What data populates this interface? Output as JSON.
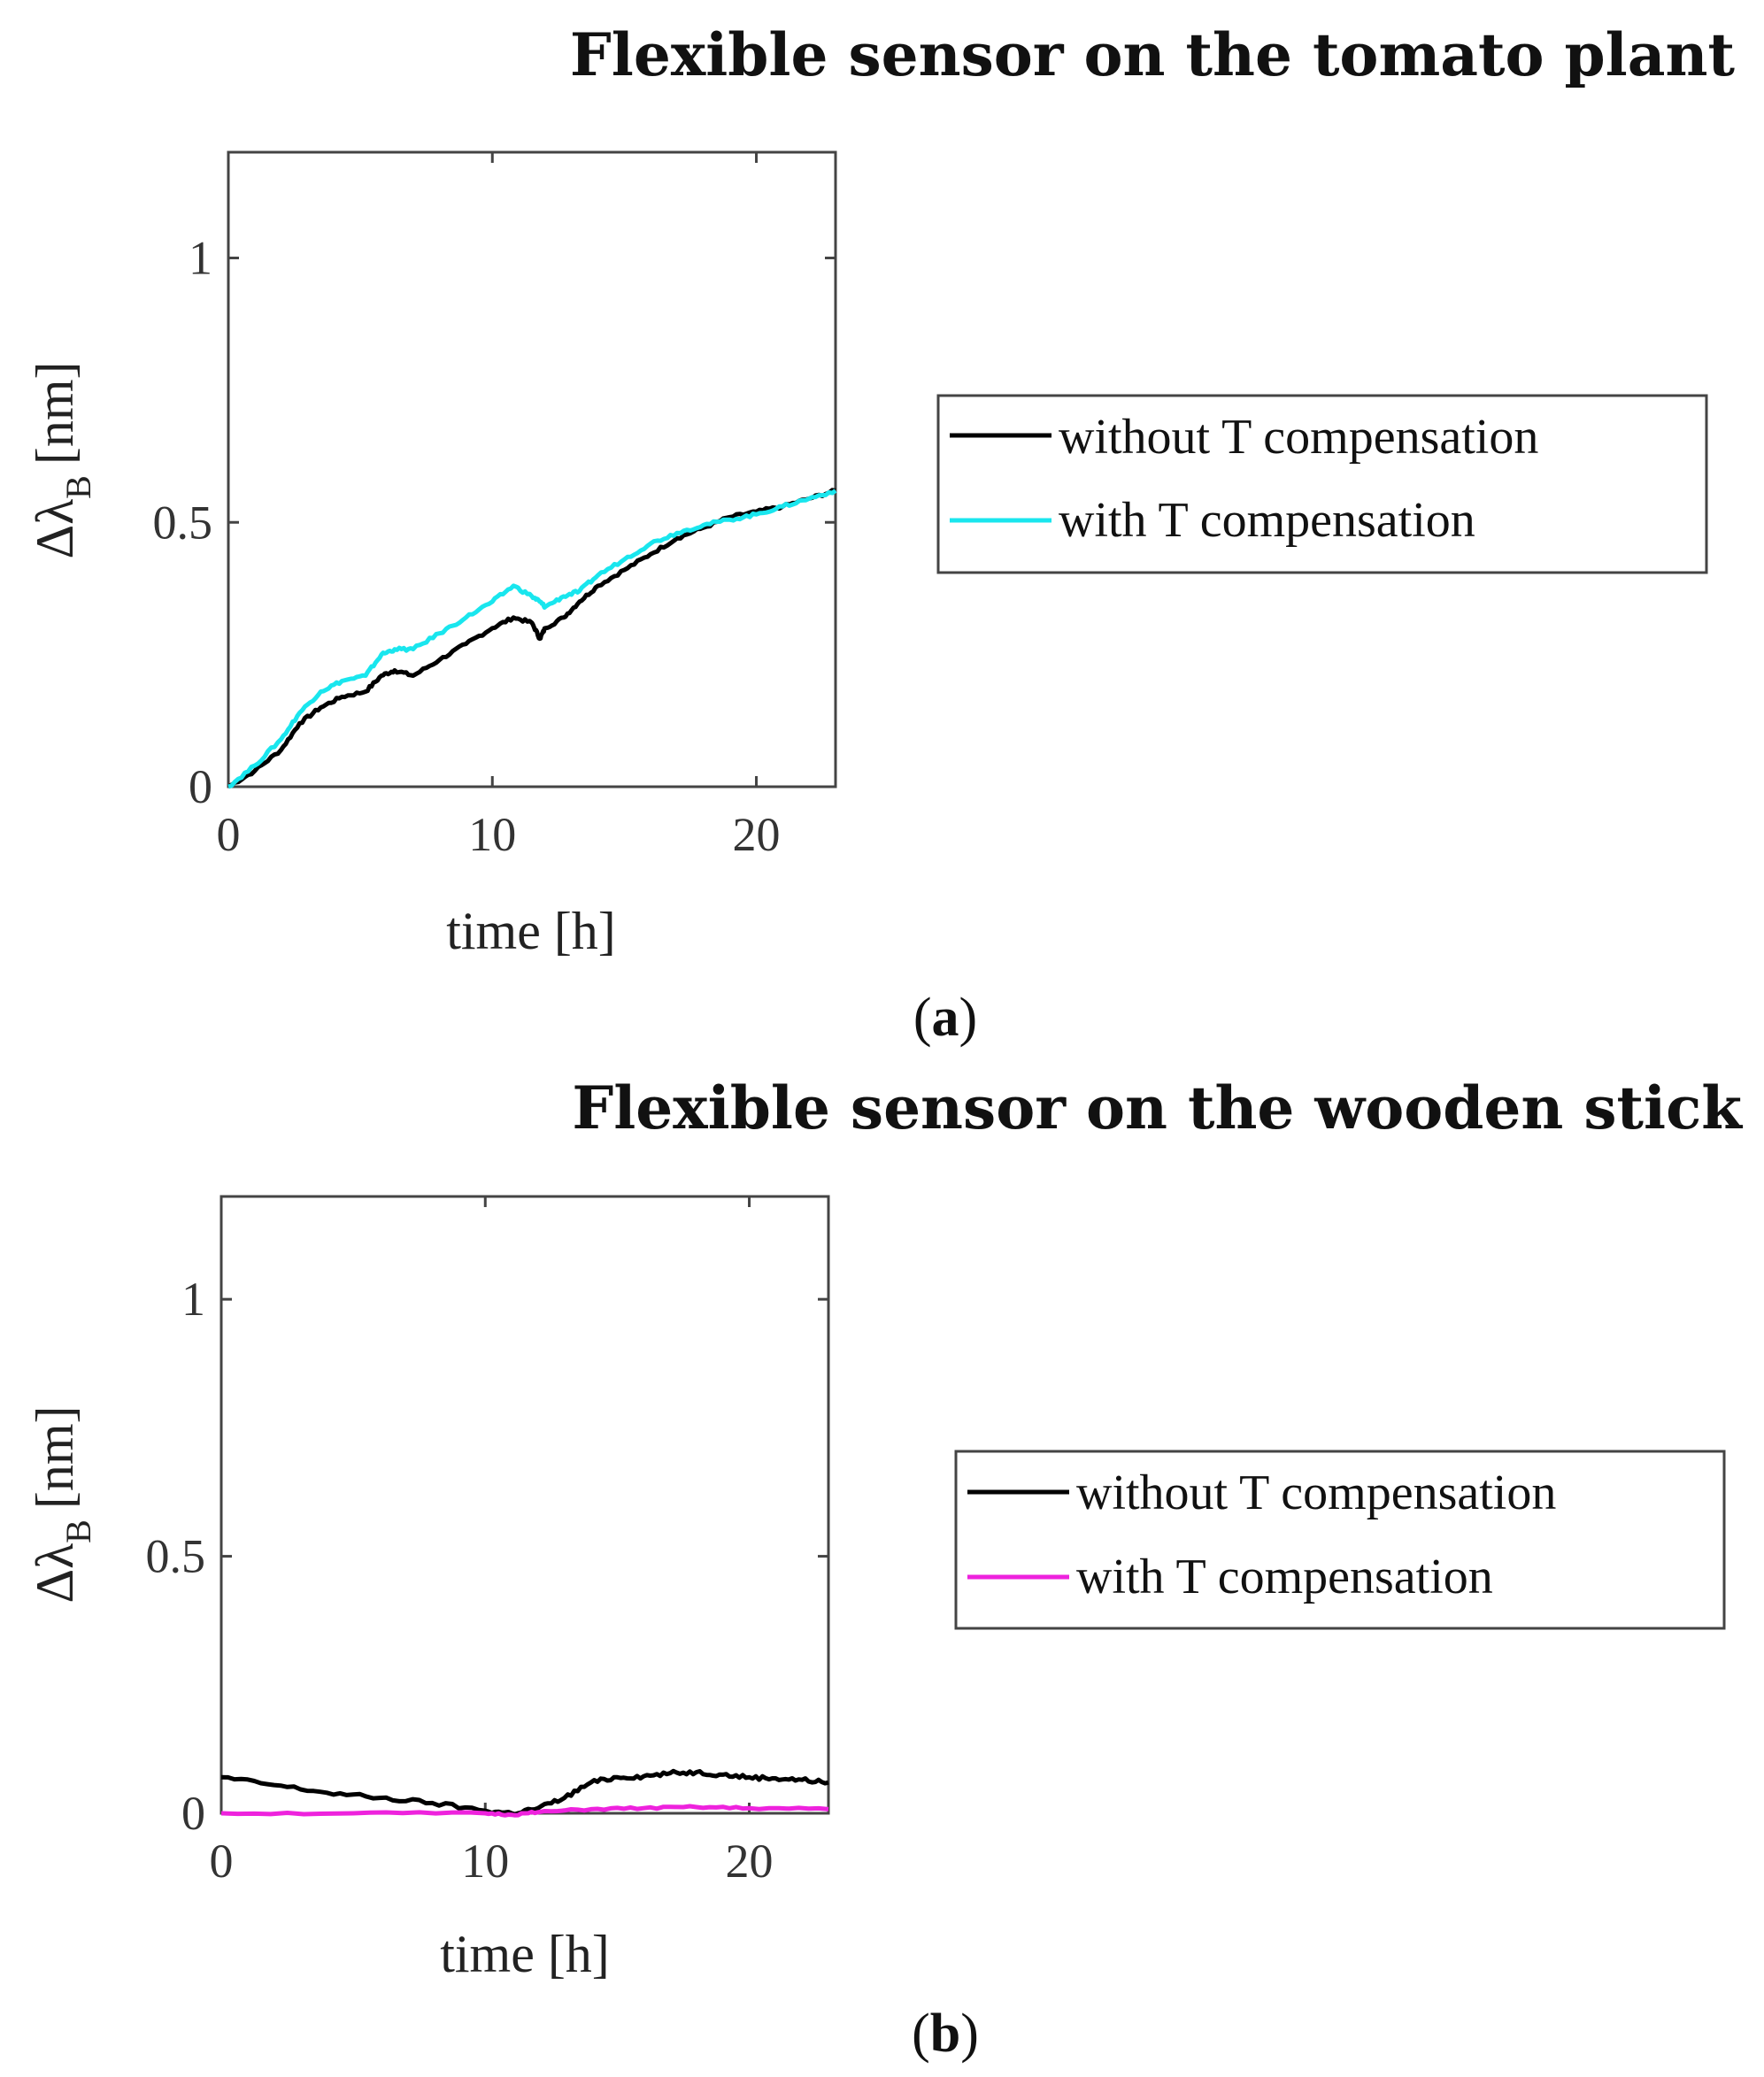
{
  "panels": [
    {
      "label_open": "(",
      "label_letter": "a",
      "label_close": ")"
    },
    {
      "label_open": "(",
      "label_letter": "b",
      "label_close": ")"
    }
  ],
  "chart_data": [
    {
      "type": "line",
      "title": "Flexible sensor on the tomato plant",
      "xlabel": "time [h]",
      "ylabel_main": "Δλ",
      "ylabel_sub": "B",
      "ylabel_unit": "[nm]",
      "xlim": [
        0,
        23
      ],
      "ylim": [
        0,
        1.2
      ],
      "xticks": [
        0,
        10,
        20
      ],
      "yticks": [
        0,
        0.5,
        1
      ],
      "ytick_labels": [
        "0",
        "0.5",
        "1"
      ],
      "legend_position": "right",
      "series": [
        {
          "name": "without T compensation",
          "color": "#000000",
          "x": [
            0,
            1,
            2,
            2.7,
            3.5,
            4.3,
            5.2,
            5.8,
            6.3,
            7,
            8,
            9,
            10,
            10.8,
            11.5,
            11.8,
            12,
            12.7,
            13.3,
            14,
            15,
            16,
            17,
            18,
            19,
            20,
            21,
            22,
            23
          ],
          "y": [
            0,
            0.03,
            0.07,
            0.12,
            0.15,
            0.17,
            0.18,
            0.21,
            0.22,
            0.21,
            0.24,
            0.27,
            0.3,
            0.32,
            0.31,
            0.28,
            0.3,
            0.32,
            0.35,
            0.38,
            0.41,
            0.44,
            0.47,
            0.49,
            0.51,
            0.52,
            0.53,
            0.545,
            0.56
          ]
        },
        {
          "name": "with T compensation",
          "color": "#19e6ee",
          "x": [
            0,
            1,
            2,
            2.7,
            3.5,
            4.3,
            5.2,
            5.8,
            6.3,
            7,
            8,
            9,
            10,
            10.8,
            11.5,
            11.8,
            12,
            12.7,
            13.3,
            14,
            15,
            16,
            17,
            18,
            19,
            20,
            21,
            22,
            23
          ],
          "y": [
            0,
            0.04,
            0.09,
            0.14,
            0.18,
            0.2,
            0.21,
            0.25,
            0.26,
            0.26,
            0.29,
            0.32,
            0.35,
            0.38,
            0.36,
            0.35,
            0.34,
            0.36,
            0.37,
            0.4,
            0.43,
            0.46,
            0.48,
            0.495,
            0.505,
            0.515,
            0.53,
            0.545,
            0.56
          ]
        }
      ]
    },
    {
      "type": "line",
      "title": "Flexible sensor on the wooden stick",
      "xlabel": "time [h]",
      "ylabel_main": "Δλ",
      "ylabel_sub": "B",
      "ylabel_unit": "[nm]",
      "xlim": [
        0,
        23
      ],
      "ylim": [
        0,
        1.2
      ],
      "xticks": [
        0,
        10,
        20
      ],
      "yticks": [
        0,
        0.5,
        1
      ],
      "ytick_labels": [
        "0",
        "0.5",
        "1"
      ],
      "legend_position": "right",
      "series": [
        {
          "name": "without T compensation",
          "color": "#000000",
          "x": [
            0,
            2,
            4,
            6,
            8,
            10,
            11,
            12,
            13,
            14,
            15,
            16,
            17,
            18,
            19,
            20,
            21,
            22,
            23
          ],
          "y": [
            0.07,
            0.055,
            0.04,
            0.03,
            0.02,
            0.005,
            0.0,
            0.01,
            0.03,
            0.06,
            0.07,
            0.072,
            0.078,
            0.08,
            0.075,
            0.07,
            0.068,
            0.065,
            0.06
          ],
          "noise": 0.004
        },
        {
          "name": "with T compensation",
          "color": "#ee22dd",
          "x": [
            0,
            5,
            10,
            11,
            12,
            14,
            16,
            18,
            20,
            23
          ],
          "y": [
            0.0,
            0.0,
            0.0,
            -0.003,
            0.002,
            0.008,
            0.01,
            0.012,
            0.01,
            0.008
          ],
          "noise": 0.002
        }
      ]
    }
  ]
}
